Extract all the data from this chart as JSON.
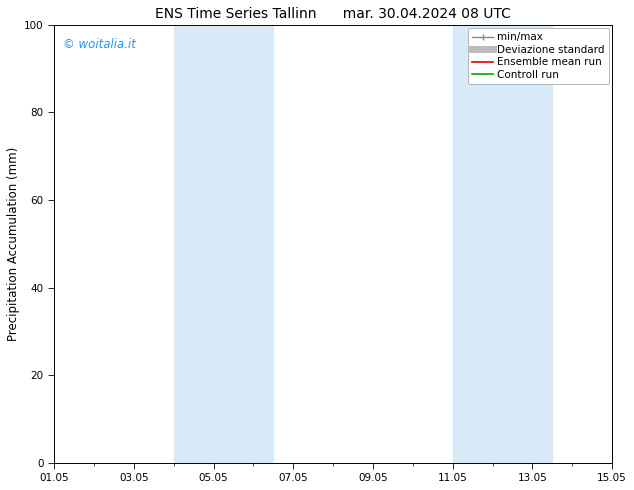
{
  "title": "ENS Time Series Tallinn      mar. 30.04.2024 08 UTC",
  "ylabel": "Precipitation Accumulation (mm)",
  "ylim": [
    0,
    100
  ],
  "yticks": [
    0,
    20,
    40,
    60,
    80,
    100
  ],
  "xlim": [
    0,
    14
  ],
  "xtick_labels": [
    "01.05",
    "03.05",
    "05.05",
    "07.05",
    "09.05",
    "11.05",
    "13.05",
    "15.05"
  ],
  "xtick_positions": [
    0,
    2,
    4,
    6,
    8,
    10,
    12,
    14
  ],
  "shaded_bands": [
    {
      "start": 3.0,
      "end": 5.5,
      "color": "#d8eaf8",
      "alpha": 1.0
    },
    {
      "start": 10.0,
      "end": 12.5,
      "color": "#d8eaf8",
      "alpha": 1.0
    }
  ],
  "watermark": "© woitalia.it",
  "watermark_color": "#2196F3",
  "legend_items": [
    {
      "label": "min/max",
      "color": "#888888",
      "lw": 1.0,
      "marker": "|"
    },
    {
      "label": "Deviazione standard",
      "color": "#bbbbbb",
      "lw": 5.0,
      "marker": "none"
    },
    {
      "label": "Ensemble mean run",
      "color": "#dd0000",
      "lw": 1.2,
      "marker": "none"
    },
    {
      "label": "Controll run",
      "color": "#00aa00",
      "lw": 1.2,
      "marker": "none"
    }
  ],
  "background_color": "#ffffff",
  "title_fontsize": 10,
  "tick_fontsize": 7.5,
  "ylabel_fontsize": 8.5,
  "legend_fontsize": 7.5,
  "watermark_fontsize": 8.5
}
